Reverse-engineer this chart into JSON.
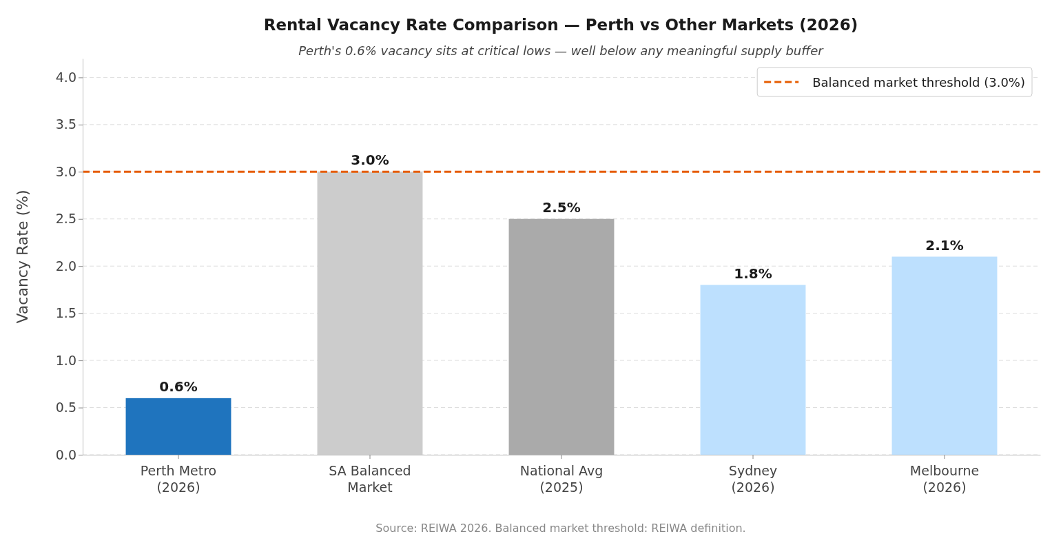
{
  "chart_data": {
    "type": "bar",
    "title": "Rental Vacancy Rate Comparison — Perth vs Other Markets (2026)",
    "subtitle": "Perth's 0.6% vacancy sits at critical lows — well below any meaningful supply buffer",
    "ylabel": "Vacancy Rate (%)",
    "categories": [
      "Perth Metro\n(2026)",
      "SA Balanced\nMarket",
      "National Avg\n(2025)",
      "Sydney\n(2026)",
      "Melbourne\n(2026)"
    ],
    "values": [
      0.6,
      3.0,
      2.5,
      1.8,
      2.1
    ],
    "colors": [
      "#1f74be",
      "#cccccc",
      "#aaaaaa",
      "#bde0fe",
      "#bde0fe"
    ],
    "value_labels": [
      "0.6%",
      "3.0%",
      "2.5%",
      "1.8%",
      "2.1%"
    ],
    "ylim": [
      0,
      4.2
    ],
    "yticks": [
      {
        "value": 0,
        "label": "0.0"
      },
      0.5,
      {
        "value": 1,
        "label": "1.0"
      },
      1.5,
      {
        "value": 2,
        "label": "2.0"
      },
      2.5,
      {
        "value": 3,
        "label": "3.0"
      },
      3.5,
      {
        "value": 4,
        "label": "4.0"
      }
    ],
    "grid": "y",
    "ref_lines": [
      {
        "axis": "y",
        "value": 3.0,
        "label": "Balanced market threshold (3.0%)",
        "color": "#e65c00",
        "line_style": "dashed"
      }
    ],
    "legend": "top right",
    "annotations": [
      "Source: REIWA 2026. Balanced market threshold: REIWA definition."
    ]
  }
}
